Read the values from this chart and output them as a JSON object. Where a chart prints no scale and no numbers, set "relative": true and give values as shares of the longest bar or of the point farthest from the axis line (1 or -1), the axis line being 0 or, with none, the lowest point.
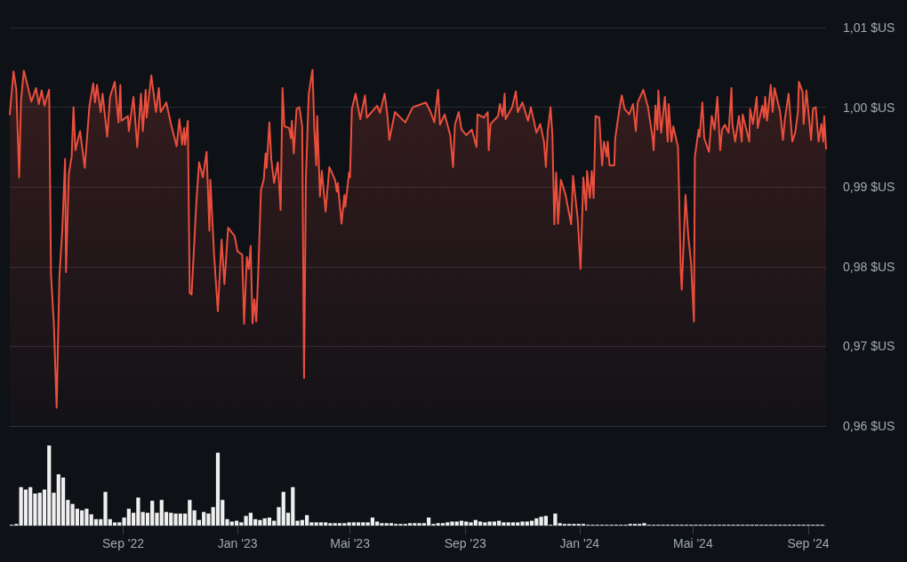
{
  "chart_data": [
    {
      "type": "area",
      "color": "#ea4f3d",
      "grid": "y",
      "tick_labels": "y",
      "xlim": [
        "2022-05-03",
        "2024-09-20"
      ],
      "ylim": [
        0.96,
        1.01
      ],
      "yticks": [
        {
          "value": 0.96,
          "label": "0,96 $US"
        },
        {
          "value": 0.97,
          "label": "0,97 $US"
        },
        {
          "value": 0.98,
          "label": "0,98 $US"
        },
        {
          "value": 0.99,
          "label": "0,99 $US"
        },
        {
          "value": 1.0,
          "label": "1,00 $US"
        },
        {
          "value": 1.01,
          "label": "1,01 $US"
        }
      ],
      "x": [
        "2022-05-03",
        "2022-05-07",
        "2022-05-10",
        "2022-05-13",
        "2022-05-15",
        "2022-05-18",
        "2022-05-21",
        "2022-05-26",
        "2022-05-31",
        "2022-06-03",
        "2022-06-06",
        "2022-06-09",
        "2022-06-14",
        "2022-06-16",
        "2022-06-19",
        "2022-06-22",
        "2022-06-25",
        "2022-06-28",
        "2022-07-01",
        "2022-07-02",
        "2022-07-05",
        "2022-07-08",
        "2022-07-10",
        "2022-07-12",
        "2022-07-17",
        "2022-07-22",
        "2022-07-27",
        "2022-07-31",
        "2022-08-02",
        "2022-08-04",
        "2022-08-08",
        "2022-08-10",
        "2022-08-15",
        "2022-08-18",
        "2022-08-23",
        "2022-08-27",
        "2022-08-29",
        "2022-08-30",
        "2022-09-06",
        "2022-09-07",
        "2022-09-12",
        "2022-09-16",
        "2022-09-20",
        "2022-09-22",
        "2022-09-25",
        "2022-09-26",
        "2022-10-01",
        "2022-10-06",
        "2022-10-09",
        "2022-10-11",
        "2022-10-17",
        "2022-10-22",
        "2022-10-28",
        "2022-10-31",
        "2022-11-03",
        "2022-11-05",
        "2022-11-06",
        "2022-11-09",
        "2022-11-11",
        "2022-11-13",
        "2022-11-18",
        "2022-11-21",
        "2022-11-25",
        "2022-11-29",
        "2022-12-02",
        "2022-12-03",
        "2022-12-07",
        "2022-12-11",
        "2022-12-15",
        "2022-12-18",
        "2022-12-22",
        "2022-12-29",
        "2023-01-01",
        "2023-01-06",
        "2023-01-08",
        "2023-01-11",
        "2023-01-13",
        "2023-01-15",
        "2023-01-17",
        "2023-01-19",
        "2023-01-21",
        "2023-01-23",
        "2023-01-26",
        "2023-01-29",
        "2023-01-31",
        "2023-02-01",
        "2023-02-04",
        "2023-02-06",
        "2023-02-09",
        "2023-02-13",
        "2023-02-16",
        "2023-02-18",
        "2023-02-20",
        "2023-02-25",
        "2023-02-27",
        "2023-02-28",
        "2023-03-02",
        "2023-03-05",
        "2023-03-08",
        "2023-03-11",
        "2023-03-13",
        "2023-03-15",
        "2023-03-18",
        "2023-03-22",
        "2023-03-24",
        "2023-03-26",
        "2023-03-27",
        "2023-03-30",
        "2023-04-01",
        "2023-04-05",
        "2023-04-09",
        "2023-04-15",
        "2023-04-17",
        "2023-04-18",
        "2023-04-22",
        "2023-04-25",
        "2023-04-26",
        "2023-04-30",
        "2023-05-01",
        "2023-05-03",
        "2023-05-07",
        "2023-05-12",
        "2023-05-17",
        "2023-05-19",
        "2023-05-30",
        "2023-06-02",
        "2023-06-07",
        "2023-06-10",
        "2023-06-12",
        "2023-06-18",
        "2023-06-29",
        "2023-07-07",
        "2023-07-21",
        "2023-07-26",
        "2023-07-30",
        "2023-08-03",
        "2023-08-05",
        "2023-08-10",
        "2023-08-16",
        "2023-08-19",
        "2023-08-21",
        "2023-08-25",
        "2023-08-28",
        "2023-09-02",
        "2023-09-08",
        "2023-09-13",
        "2023-09-14",
        "2023-09-21",
        "2023-09-25",
        "2023-09-26",
        "2023-09-28",
        "2023-10-06",
        "2023-10-08",
        "2023-10-11",
        "2023-10-13",
        "2023-10-14",
        "2023-10-21",
        "2023-10-25",
        "2023-10-27",
        "2023-11-01",
        "2023-11-07",
        "2023-11-10",
        "2023-11-16",
        "2023-11-20",
        "2023-11-24",
        "2023-11-26",
        "2023-11-28",
        "2023-12-01",
        "2023-12-03",
        "2023-12-05",
        "2023-12-07",
        "2023-12-09",
        "2023-12-12",
        "2023-12-17",
        "2023-12-23",
        "2023-12-25",
        "2023-12-30",
        "2024-01-02",
        "2024-01-05",
        "2024-01-08",
        "2024-01-09",
        "2024-01-12",
        "2024-01-14",
        "2024-01-16",
        "2024-01-18",
        "2024-01-22",
        "2024-01-25",
        "2024-01-27",
        "2024-01-30",
        "2024-01-31",
        "2024-02-02",
        "2024-02-07",
        "2024-02-08",
        "2024-02-13",
        "2024-02-15",
        "2024-02-18",
        "2024-02-23",
        "2024-02-27",
        "2024-03-01",
        "2024-03-03",
        "2024-03-09",
        "2024-03-14",
        "2024-03-19",
        "2024-03-20",
        "2024-03-22",
        "2024-03-24",
        "2024-03-25",
        "2024-03-28",
        "2024-04-01",
        "2024-04-04",
        "2024-04-05",
        "2024-04-08",
        "2024-04-10",
        "2024-04-15",
        "2024-04-16",
        "2024-04-18",
        "2024-04-19",
        "2024-04-23",
        "2024-04-26",
        "2024-04-29",
        "2024-05-02",
        "2024-05-03",
        "2024-05-07",
        "2024-05-08",
        "2024-05-11",
        "2024-05-13",
        "2024-05-18",
        "2024-05-21",
        "2024-05-24",
        "2024-05-27",
        "2024-05-30",
        "2024-06-01",
        "2024-06-04",
        "2024-06-08",
        "2024-06-11",
        "2024-06-12",
        "2024-06-15",
        "2024-06-19",
        "2024-06-22",
        "2024-06-23",
        "2024-06-30",
        "2024-07-01",
        "2024-07-04",
        "2024-07-08",
        "2024-07-09",
        "2024-07-14",
        "2024-07-16",
        "2024-07-17",
        "2024-07-19",
        "2024-07-23",
        "2024-07-25",
        "2024-07-27",
        "2024-08-02",
        "2024-08-05",
        "2024-08-07",
        "2024-08-11",
        "2024-08-15",
        "2024-08-18",
        "2024-08-21",
        "2024-08-22",
        "2024-08-26",
        "2024-08-27",
        "2024-08-30",
        "2024-09-04",
        "2024-09-06",
        "2024-09-09",
        "2024-09-12",
        "2024-09-15",
        "2024-09-17",
        "2024-09-18",
        "2024-09-20"
      ],
      "values": [
        0.9991,
        1.0045,
        1.0022,
        0.9912,
        1.0009,
        1.0046,
        1.0032,
        1.0007,
        1.0024,
        1.0004,
        1.0021,
        1.0002,
        1.0022,
        0.9789,
        0.9729,
        0.9623,
        0.9789,
        0.9845,
        0.9935,
        0.9793,
        0.9916,
        0.9938,
        1.0,
        0.9946,
        0.997,
        0.9924,
        1.0002,
        1.003,
        1.0006,
        1.0028,
        0.9994,
        1.0017,
        0.9963,
        1.0013,
        1.0032,
        0.9981,
        1.0028,
        0.9983,
        0.9989,
        0.997,
        1.0013,
        0.995,
        1.0017,
        0.997,
        1.0022,
        0.9987,
        1.004,
        0.9994,
        1.0024,
        0.9994,
        1.0006,
        0.9979,
        0.9951,
        0.9985,
        0.9953,
        0.9974,
        0.9953,
        0.9983,
        0.9767,
        0.9765,
        0.9879,
        0.9931,
        0.9912,
        0.9944,
        0.9845,
        0.9909,
        0.9815,
        0.9744,
        0.9834,
        0.9778,
        0.9849,
        0.9838,
        0.9819,
        0.9815,
        0.9728,
        0.9812,
        0.9797,
        0.9826,
        0.9729,
        0.9759,
        0.9731,
        0.9789,
        0.9896,
        0.9909,
        0.9942,
        0.9924,
        0.9981,
        0.9935,
        0.9905,
        0.9931,
        0.9871,
        1.0024,
        0.9976,
        0.9974,
        0.9961,
        0.9983,
        0.9942,
        0.9998,
        1.0,
        0.9976,
        0.966,
        0.9912,
        1.0017,
        1.0047,
        0.9972,
        0.9927,
        0.9989,
        0.9888,
        0.992,
        0.9869,
        0.9925,
        0.9909,
        0.9894,
        0.9905,
        0.9854,
        0.989,
        0.9875,
        0.9918,
        0.9912,
        0.9998,
        1.0017,
        0.9985,
        1.0015,
        0.9987,
        1.0002,
        0.9993,
        1.0017,
        0.9989,
        0.9959,
        0.9994,
        0.9981,
        1.0,
        1.0006,
        0.9994,
        0.9981,
        1.0022,
        0.9978,
        0.9991,
        0.9965,
        0.9925,
        0.9978,
        0.9994,
        0.9972,
        0.9965,
        0.9972,
        0.995,
        0.9991,
        0.9987,
        0.9994,
        0.9946,
        0.9979,
        0.9989,
        1.0004,
        0.9989,
        1.0017,
        0.9985,
        1.0,
        1.002,
        0.9994,
        1.0006,
        0.9983,
        1.0,
        0.9968,
        0.9979,
        0.9957,
        0.9925,
        0.997,
        1.0,
        0.9965,
        0.9853,
        0.9918,
        0.9854,
        0.9909,
        0.989,
        0.9853,
        0.9914,
        0.986,
        0.9797,
        0.9912,
        0.9871,
        0.992,
        0.9886,
        0.992,
        0.9886,
        0.9989,
        0.9987,
        0.9927,
        0.9957,
        0.9938,
        0.9957,
        0.9927,
        0.9927,
        0.9961,
        1.0002,
        1.0015,
        0.9998,
        0.9991,
        1.0004,
        0.997,
        1.0006,
        1.0022,
        1.0,
        0.9961,
        0.9946,
        1.0002,
        0.9972,
        1.0021,
        0.9968,
        1.0013,
        0.9957,
        1.0004,
        0.9957,
        0.9976,
        0.995,
        0.9901,
        0.9793,
        0.9771,
        0.989,
        0.9838,
        0.9804,
        0.9731,
        0.9938,
        0.9972,
        0.9963,
        1.0006,
        0.9961,
        0.9944,
        0.9989,
        0.9972,
        1.0013,
        0.9946,
        0.9972,
        0.9978,
        0.9968,
        1.0024,
        0.9979,
        0.9957,
        0.9989,
        0.9957,
        0.9991,
        0.9957,
        0.9998,
        0.9979,
        1.0013,
        0.9974,
        1.0002,
        0.9987,
        1.0013,
        0.9983,
        1.0028,
        0.9994,
        1.0024,
        0.9994,
        0.9959,
        0.9985,
        1.0017,
        0.9957,
        0.9968,
        0.9994,
        1.0032,
        1.0019,
        0.9979,
        1.0021,
        0.9959,
        0.9998,
        1.0,
        0.9957,
        0.9979,
        0.9957,
        0.9989,
        0.9948
      ]
    },
    {
      "type": "bar",
      "relative": true,
      "color": "#efefef",
      "tick_labels": "x",
      "xlim": [
        "2022-05-03",
        "2024-09-20"
      ],
      "xticks": [
        {
          "value": "2022-09-01",
          "label": "Sep '22"
        },
        {
          "value": "2023-01-01",
          "label": "Jan '23"
        },
        {
          "value": "2023-05-01",
          "label": "Mai '23"
        },
        {
          "value": "2023-09-01",
          "label": "Sep '23"
        },
        {
          "value": "2024-01-01",
          "label": "Jan '24"
        },
        {
          "value": "2024-05-01",
          "label": "Mai '24"
        },
        {
          "value": "2024-09-01",
          "label": "Sep '24"
        }
      ],
      "x": [
        "2022-05-05",
        "2022-05-10",
        "2022-05-15",
        "2022-05-20",
        "2022-05-25",
        "2022-05-30",
        "2022-06-04",
        "2022-06-09",
        "2022-06-14",
        "2022-06-19",
        "2022-06-24",
        "2022-06-29",
        "2022-07-04",
        "2022-07-09",
        "2022-07-14",
        "2022-07-19",
        "2022-07-24",
        "2022-07-29",
        "2022-08-03",
        "2022-08-08",
        "2022-08-13",
        "2022-08-18",
        "2022-08-23",
        "2022-08-28",
        "2022-09-02",
        "2022-09-07",
        "2022-09-12",
        "2022-09-17",
        "2022-09-22",
        "2022-09-27",
        "2022-10-02",
        "2022-10-07",
        "2022-10-12",
        "2022-10-17",
        "2022-10-22",
        "2022-10-27",
        "2022-11-01",
        "2022-11-06",
        "2022-11-11",
        "2022-11-16",
        "2022-11-21",
        "2022-11-26",
        "2022-12-01",
        "2022-12-06",
        "2022-12-11",
        "2022-12-16",
        "2022-12-21",
        "2022-12-26",
        "2022-12-31",
        "2023-01-05",
        "2023-01-10",
        "2023-01-15",
        "2023-01-20",
        "2023-01-25",
        "2023-01-30",
        "2023-02-04",
        "2023-02-09",
        "2023-02-14",
        "2023-02-19",
        "2023-02-24",
        "2023-03-01",
        "2023-03-06",
        "2023-03-11",
        "2023-03-16",
        "2023-03-21",
        "2023-03-26",
        "2023-03-31",
        "2023-04-05",
        "2023-04-10",
        "2023-04-15",
        "2023-04-20",
        "2023-04-25",
        "2023-04-30",
        "2023-05-05",
        "2023-05-10",
        "2023-05-15",
        "2023-05-20",
        "2023-05-25",
        "2023-05-30",
        "2023-06-04",
        "2023-06-09",
        "2023-06-14",
        "2023-06-19",
        "2023-06-24",
        "2023-06-29",
        "2023-07-04",
        "2023-07-09",
        "2023-07-14",
        "2023-07-19",
        "2023-07-24",
        "2023-07-29",
        "2023-08-03",
        "2023-08-08",
        "2023-08-13",
        "2023-08-18",
        "2023-08-23",
        "2023-08-28",
        "2023-09-02",
        "2023-09-07",
        "2023-09-12",
        "2023-09-17",
        "2023-09-22",
        "2023-09-27",
        "2023-10-02",
        "2023-10-07",
        "2023-10-12",
        "2023-10-17",
        "2023-10-22",
        "2023-10-27",
        "2023-11-01",
        "2023-11-06",
        "2023-11-11",
        "2023-11-16",
        "2023-11-21",
        "2023-11-26",
        "2023-12-01",
        "2023-12-06",
        "2023-12-11",
        "2023-12-16",
        "2023-12-21",
        "2023-12-26",
        "2023-12-31",
        "2024-01-05",
        "2024-01-10",
        "2024-01-15",
        "2024-01-20",
        "2024-01-25",
        "2024-01-30",
        "2024-02-04",
        "2024-02-09",
        "2024-02-14",
        "2024-02-19",
        "2024-02-24",
        "2024-02-29",
        "2024-03-05",
        "2024-03-10",
        "2024-03-15",
        "2024-03-20",
        "2024-03-25",
        "2024-03-30",
        "2024-04-04",
        "2024-04-09",
        "2024-04-14",
        "2024-04-19",
        "2024-04-24",
        "2024-04-29",
        "2024-05-04",
        "2024-05-09",
        "2024-05-14",
        "2024-05-19",
        "2024-05-24",
        "2024-05-29",
        "2024-06-03",
        "2024-06-08",
        "2024-06-13",
        "2024-06-18",
        "2024-06-23",
        "2024-06-28",
        "2024-07-03",
        "2024-07-08",
        "2024-07-13",
        "2024-07-18",
        "2024-07-23",
        "2024-07-28",
        "2024-08-02",
        "2024-08-07",
        "2024-08-12",
        "2024-08-17",
        "2024-08-22",
        "2024-08-27",
        "2024-09-01",
        "2024-09-06",
        "2024-09-11",
        "2024-09-16"
      ],
      "values": [
        0.01,
        0.02,
        0.48,
        0.45,
        0.48,
        0.4,
        0.41,
        0.45,
        1,
        0.41,
        0.64,
        0.6,
        0.32,
        0.27,
        0.21,
        0.19,
        0.21,
        0.14,
        0.08,
        0.08,
        0.42,
        0.08,
        0.04,
        0.04,
        0.1,
        0.21,
        0.16,
        0.35,
        0.17,
        0.16,
        0.31,
        0.16,
        0.32,
        0.17,
        0.16,
        0.15,
        0.15,
        0.15,
        0.32,
        0.19,
        0.07,
        0.17,
        0.15,
        0.23,
        0.91,
        0.32,
        0.08,
        0.05,
        0.06,
        0.04,
        0.12,
        0.16,
        0.08,
        0.07,
        0.09,
        0.1,
        0.06,
        0.23,
        0.42,
        0.16,
        0.48,
        0.06,
        0.07,
        0.13,
        0.04,
        0.04,
        0.04,
        0.04,
        0.03,
        0.03,
        0.03,
        0.03,
        0.04,
        0.04,
        0.04,
        0.04,
        0.04,
        0.1,
        0.05,
        0.03,
        0.03,
        0.03,
        0.02,
        0.02,
        0.02,
        0.03,
        0.03,
        0.03,
        0.03,
        0.1,
        0.02,
        0.03,
        0.03,
        0.04,
        0.05,
        0.05,
        0.06,
        0.05,
        0.04,
        0.07,
        0.05,
        0.04,
        0.05,
        0.05,
        0.06,
        0.04,
        0.04,
        0.04,
        0.04,
        0.05,
        0.05,
        0.06,
        0.09,
        0.11,
        0.12,
        0.01,
        0.15,
        0.03,
        0.02,
        0.02,
        0.02,
        0.02,
        0.02,
        0.01,
        0.01,
        0.01,
        0.01,
        0.01,
        0.01,
        0.01,
        0.01,
        0.01,
        0.02,
        0.02,
        0.02,
        0.03,
        0.01,
        0.01,
        0.01,
        0.01,
        0.01,
        0.01,
        0.01,
        0.01,
        0.01,
        0.01,
        0.01,
        0.01,
        0.01,
        0.01,
        0.01,
        0.01,
        0.01,
        0.01,
        0.01,
        0.01,
        0.01,
        0.01,
        0.01,
        0.01,
        0.01,
        0.01,
        0.01,
        0.01,
        0.01,
        0.01,
        0.01,
        0.01,
        0.01,
        0.01,
        0.01,
        0.01,
        0.01,
        0.01
      ]
    }
  ]
}
